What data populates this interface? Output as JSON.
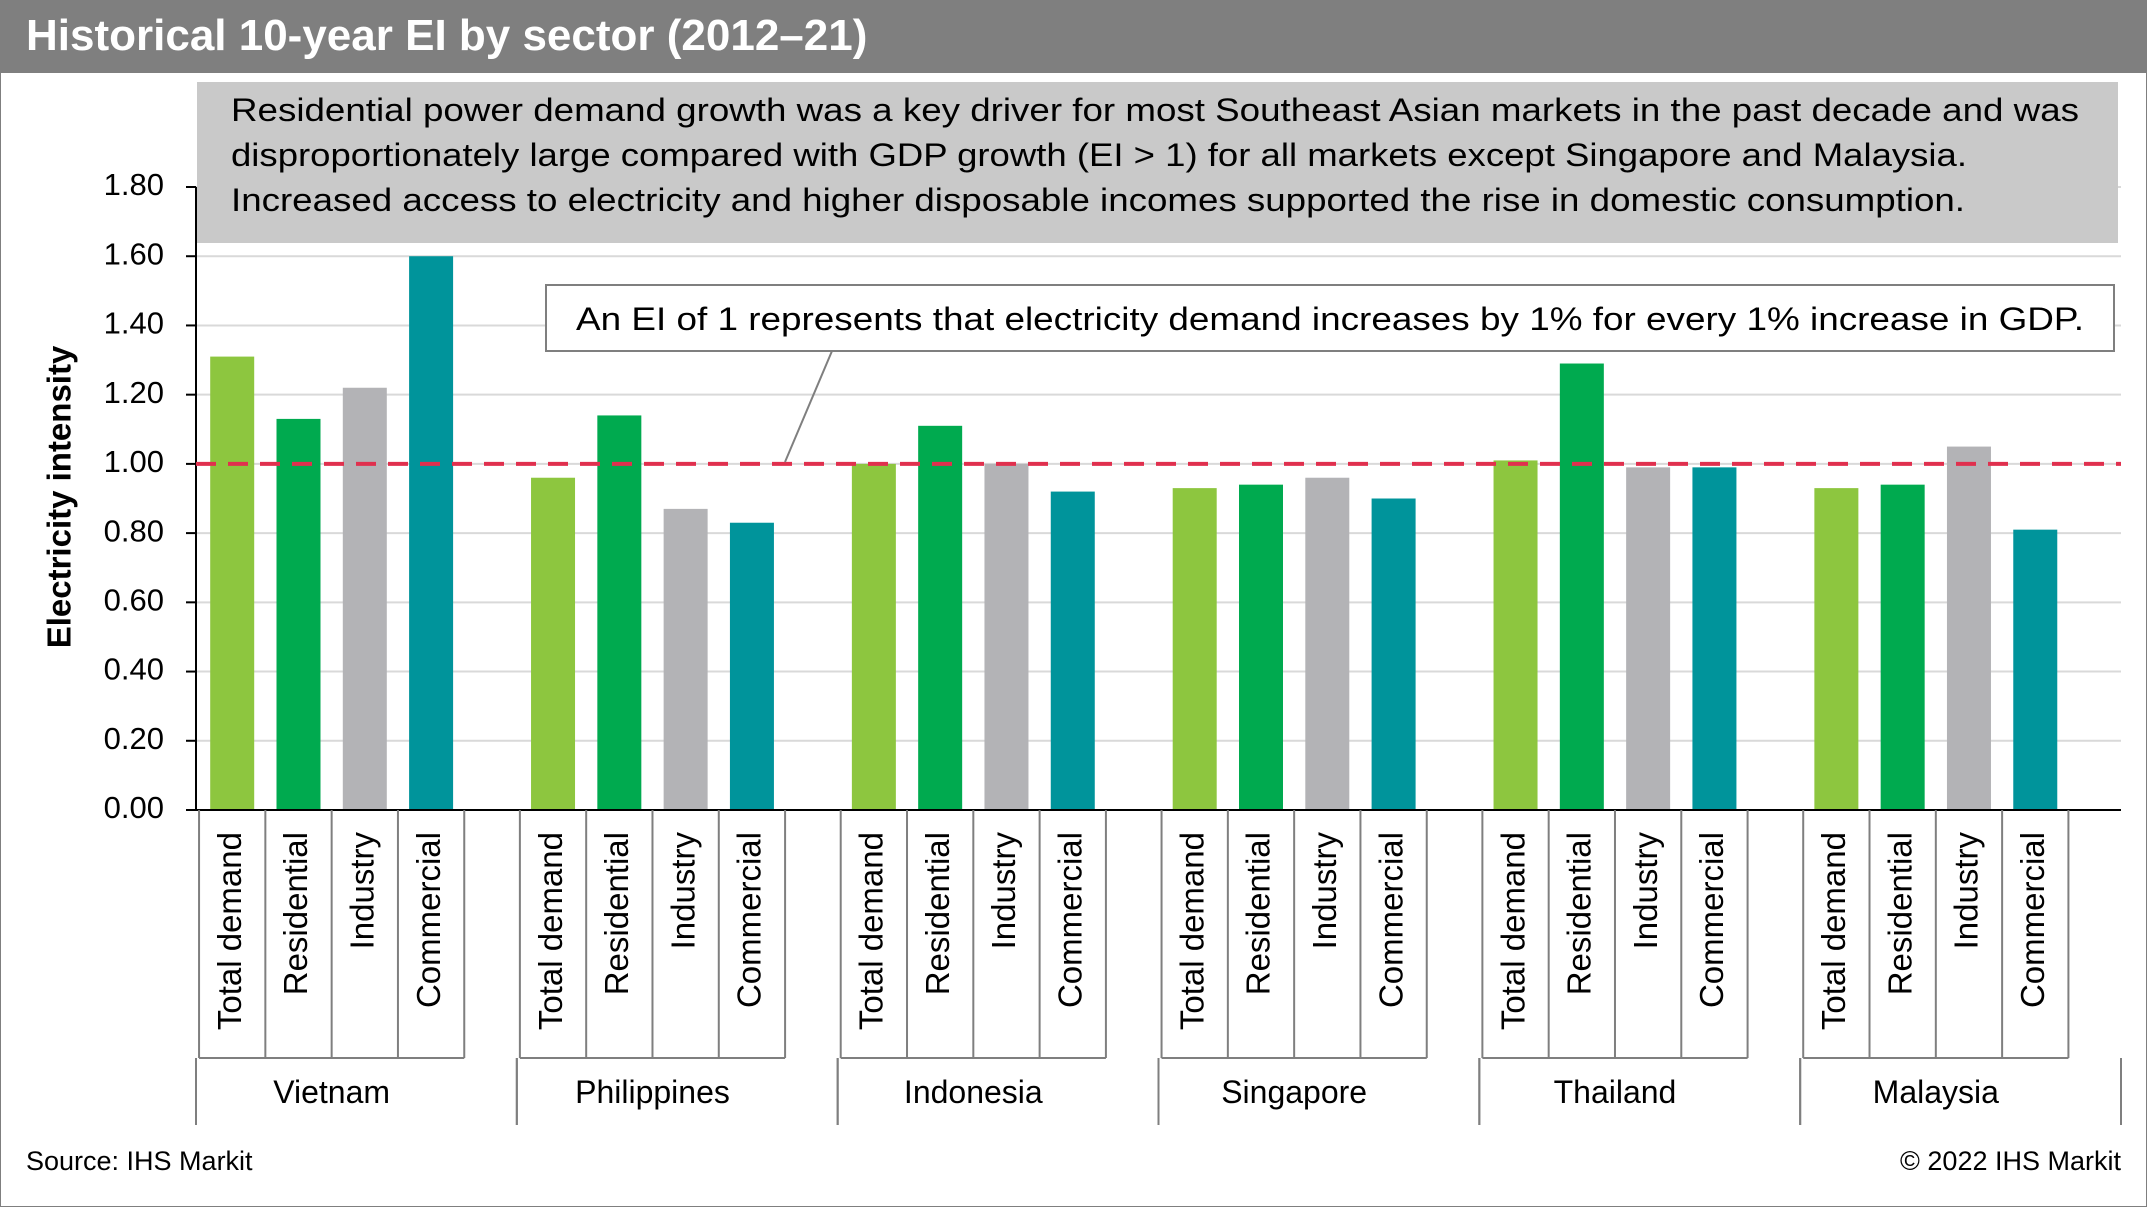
{
  "title": "Historical 10-year EI by sector (2012–21)",
  "footer": {
    "source": "Source: IHS Markit",
    "copyright": "© 2022 IHS Markit"
  },
  "colors": {
    "title_bar": "#7f7f7f",
    "callout_bg": "#c9c9c9",
    "reference_line": "#e0304e"
  },
  "chart_data": {
    "type": "bar",
    "ylabel": "Electricity intensity",
    "ylim": [
      0,
      1.8
    ],
    "yticks": [
      "0.00",
      "0.20",
      "0.40",
      "0.60",
      "0.80",
      "1.00",
      "1.20",
      "1.40",
      "1.60",
      "1.80"
    ],
    "gridlines": true,
    "sectors": [
      "Total demand",
      "Residential",
      "Industry",
      "Commercial"
    ],
    "sector_colors": [
      "#8dc63f",
      "#00aa4f",
      "#b3b3b6",
      "#00949b"
    ],
    "reference_line": 1.0,
    "groups": [
      {
        "name": "Vietnam",
        "values": [
          1.31,
          1.13,
          1.22,
          1.6
        ]
      },
      {
        "name": "Philippines",
        "values": [
          0.96,
          1.14,
          0.87,
          0.83
        ]
      },
      {
        "name": "Indonesia",
        "values": [
          1.0,
          1.11,
          1.0,
          0.92
        ]
      },
      {
        "name": "Singapore",
        "values": [
          0.93,
          0.94,
          0.96,
          0.9
        ]
      },
      {
        "name": "Thailand",
        "values": [
          1.01,
          1.29,
          0.99,
          0.99
        ]
      },
      {
        "name": "Malaysia",
        "values": [
          0.93,
          0.94,
          1.05,
          0.81
        ]
      }
    ],
    "annotations": {
      "summary_lines": [
        "Residential power demand growth was a key driver for most Southeast Asian markets in the past decade and was",
        "disproportionately large compared with GDP growth (EI > 1) for all markets except Singapore and Malaysia.",
        "Increased access to electricity and higher disposable incomes supported the rise in domestic consumption."
      ],
      "reference_note": "An EI of 1 represents that electricity demand increases by 1% for every 1% increase in GDP."
    }
  }
}
